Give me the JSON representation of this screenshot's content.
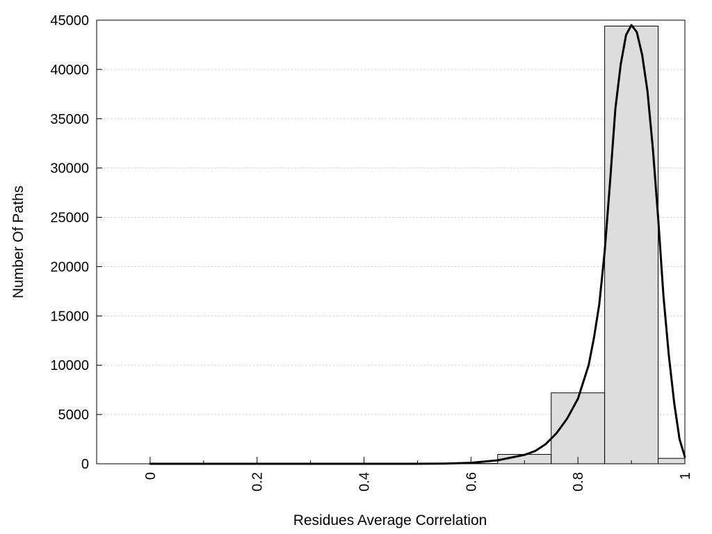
{
  "chart_data": {
    "type": "bar",
    "title": "",
    "xlabel": "Residues Average Correlation",
    "ylabel": "Number Of Paths",
    "xlim": [
      -0.1,
      1.0
    ],
    "ylim": [
      0,
      45000
    ],
    "grid": "horizontal-dotted",
    "legend": "none",
    "x_ticks": [
      {
        "value": 0,
        "label": "0"
      },
      {
        "value": 0.2,
        "label": "0.2"
      },
      {
        "value": 0.4,
        "label": "0.4"
      },
      {
        "value": 0.6,
        "label": "0.6"
      },
      {
        "value": 0.8,
        "label": "0.8"
      },
      {
        "value": 1.0,
        "label": "1"
      }
    ],
    "x_minor_ticks": [
      0.1,
      0.3,
      0.5,
      0.7,
      0.9
    ],
    "y_ticks": [
      {
        "value": 0,
        "label": "0"
      },
      {
        "value": 5000,
        "label": "5000"
      },
      {
        "value": 10000,
        "label": "10000"
      },
      {
        "value": 15000,
        "label": "15000"
      },
      {
        "value": 20000,
        "label": "20000"
      },
      {
        "value": 25000,
        "label": "25000"
      },
      {
        "value": 30000,
        "label": "30000"
      },
      {
        "value": 35000,
        "label": "35000"
      },
      {
        "value": 40000,
        "label": "40000"
      },
      {
        "value": 45000,
        "label": "45000"
      }
    ],
    "bins": [
      {
        "x0": 0.0,
        "x1": 0.05,
        "value": 0
      },
      {
        "x0": 0.05,
        "x1": 0.15,
        "value": 0
      },
      {
        "x0": 0.15,
        "x1": 0.25,
        "value": 0
      },
      {
        "x0": 0.25,
        "x1": 0.35,
        "value": 0
      },
      {
        "x0": 0.35,
        "x1": 0.45,
        "value": 0
      },
      {
        "x0": 0.45,
        "x1": 0.55,
        "value": 0
      },
      {
        "x0": 0.55,
        "x1": 0.65,
        "value": 30
      },
      {
        "x0": 0.65,
        "x1": 0.75,
        "value": 950
      },
      {
        "x0": 0.75,
        "x1": 0.85,
        "value": 7200
      },
      {
        "x0": 0.85,
        "x1": 0.95,
        "value": 44400
      },
      {
        "x0": 0.95,
        "x1": 1.0,
        "value": 550
      }
    ],
    "fit_curve": {
      "x": [
        0.0,
        0.1,
        0.2,
        0.3,
        0.4,
        0.5,
        0.55,
        0.6,
        0.65,
        0.7,
        0.72,
        0.74,
        0.76,
        0.78,
        0.8,
        0.82,
        0.83,
        0.84,
        0.85,
        0.86,
        0.87,
        0.88,
        0.89,
        0.9,
        0.91,
        0.92,
        0.93,
        0.94,
        0.95,
        0.96,
        0.97,
        0.98,
        0.99,
        1.0
      ],
      "y": [
        0,
        0,
        0,
        0,
        0,
        0,
        20,
        100,
        350,
        900,
        1300,
        2000,
        3100,
        4600,
        6600,
        10000,
        12800,
        16200,
        21500,
        28500,
        36000,
        40500,
        43500,
        44500,
        43800,
        41500,
        37800,
        32000,
        25000,
        17000,
        11000,
        6200,
        2500,
        700
      ]
    },
    "colors": {
      "bar_fill": "#dddddd",
      "bar_stroke": "#000000",
      "curve": "#000000",
      "grid": "#c8c8c8"
    }
  }
}
